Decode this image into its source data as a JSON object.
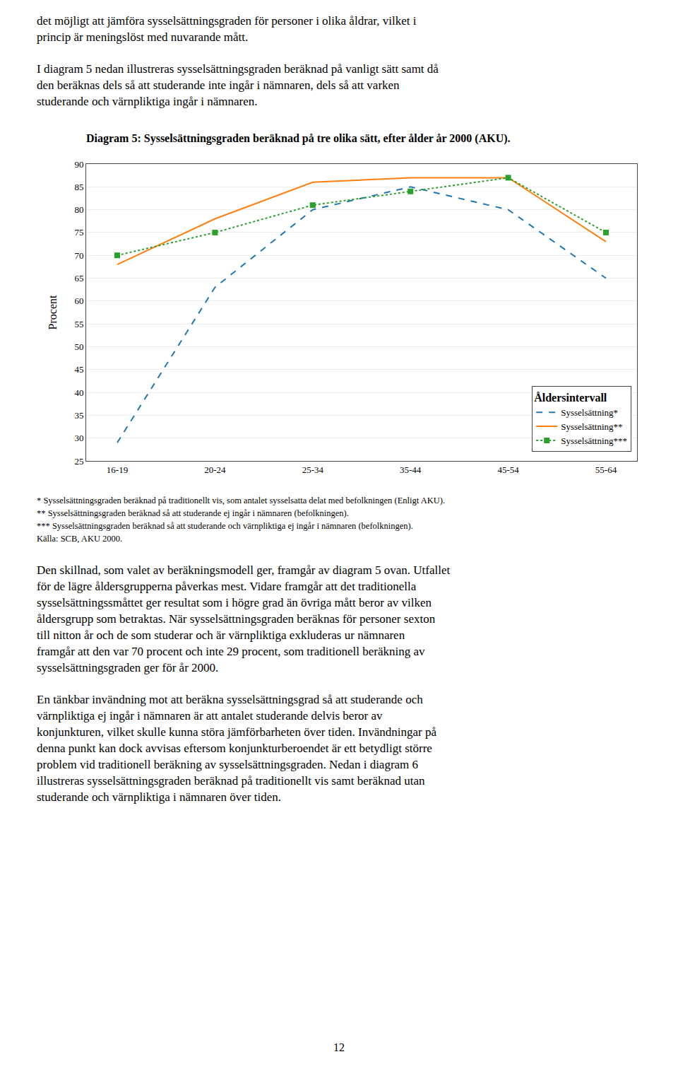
{
  "chart_data": {
    "type": "line",
    "title": "Diagram 5: Sysselsättningsgraden beräknad på tre olika sätt, efter ålder år 2000 (AKU).",
    "ylabel": "Procent",
    "legend_title": "Åldersintervall",
    "categories": [
      "16-19",
      "20-24",
      "25-34",
      "35-44",
      "45-54",
      "55-64"
    ],
    "series": [
      {
        "name": "Sysselsättning*",
        "values": [
          29,
          63,
          80,
          85,
          80,
          65
        ],
        "line_style": "dashed"
      },
      {
        "name": "Sysselsättning**",
        "values": [
          68,
          78,
          86,
          87,
          87,
          73
        ],
        "line_style": "solid"
      },
      {
        "name": "Sysselsättning***",
        "values": [
          70,
          75,
          81,
          84,
          87,
          75
        ],
        "line_style": "dotted",
        "marker": "square"
      }
    ],
    "ylim": [
      25,
      90
    ],
    "yticks": [
      25,
      30,
      35,
      40,
      45,
      50,
      55,
      60,
      65,
      70,
      75,
      80,
      85,
      90
    ],
    "grid": true,
    "legend": "lower right"
  },
  "paragraphs_before": [
    [
      "det möjligt att jämföra sysselsättningsgraden för personer i olika åldrar, vilket i",
      "princip är meningslöst med nuvarande mått."
    ],
    [
      "I diagram 5 nedan illustreras sysselsättningsgraden beräknad på vanligt sätt samt då",
      "den beräknas dels så att studerande inte ingår i nämnaren, dels så att varken",
      "studerande och värnpliktiga ingår i nämnaren."
    ]
  ],
  "footnotes": [
    "* Sysselsättningsgraden beräknad på traditionellt vis, som antalet sysselsatta delat med befolkningen (Enligt AKU).",
    "** Sysselsättningsgraden beräknad så att studerande ej ingår i nämnaren (befolkningen).",
    "*** Sysselsättningsgraden beräknad så att studerande och värnpliktiga ej ingår i nämnaren (befolkningen).",
    "Källa: SCB, AKU 2000."
  ],
  "paragraphs_after": [
    [
      "Den skillnad, som valet av beräkningsmodell ger, framgår av diagram 5 ovan. Utfallet",
      "för de lägre åldersgrupperna påverkas mest. Vidare framgår att det traditionella",
      "sysselsättningssmåttet ger resultat som i högre grad än övriga mått beror av vilken",
      "åldersgrupp som betraktas. När sysselsättningsgraden beräknas för personer sexton",
      "till nitton år och de som studerar och är värnpliktiga exkluderas ur nämnaren",
      "framgår att den var 70 procent och inte 29 procent, som traditionell beräkning av",
      "sysselsättningsgraden ger för år 2000."
    ],
    [
      "En tänkbar invändning mot att beräkna sysselsättningsgrad så att studerande och",
      "värnpliktiga ej ingår i nämnaren är att antalet studerande delvis beror av",
      "konjunkturen, vilket skulle kunna störa jämförbarheten över tiden. Invändningar på",
      "denna punkt kan dock avvisas eftersom konjunkturberoendet är ett betydligt större",
      "problem vid traditionell beräkning av sysselsättningsgraden. Nedan i diagram 6",
      "illustreras sysselsättningsgraden beräknad på traditionellt vis samt beräknad utan",
      "studerande och värnpliktiga i nämnaren över tiden."
    ]
  ],
  "page_number": "12"
}
